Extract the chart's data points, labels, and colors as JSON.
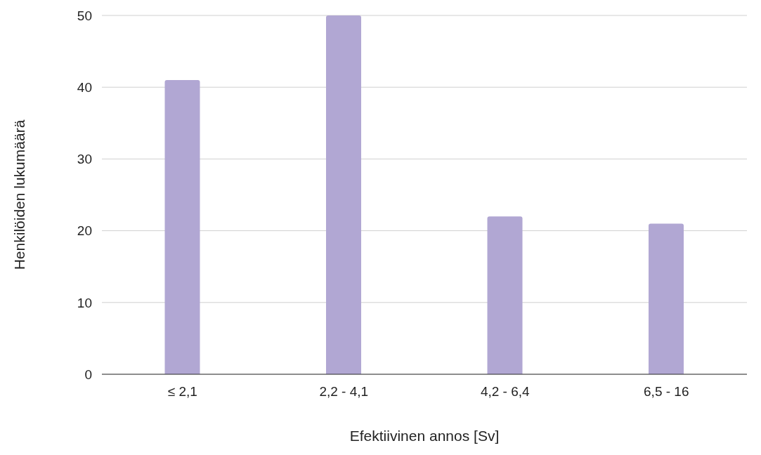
{
  "chart_data": {
    "type": "bar",
    "xlabel": "Efektiivinen annos [Sv]",
    "ylabel": "Henkilöiden lukumäärä",
    "categories": [
      "≤ 2,1",
      "2,2 - 4,1",
      "4,2 - 6,4",
      "6,5 - 16"
    ],
    "values": [
      41,
      50,
      22,
      21
    ],
    "color": "#b1a7d3",
    "ylim": [
      0,
      50
    ],
    "yticks": [
      0,
      10,
      20,
      30,
      40,
      50
    ],
    "grid": "y"
  }
}
